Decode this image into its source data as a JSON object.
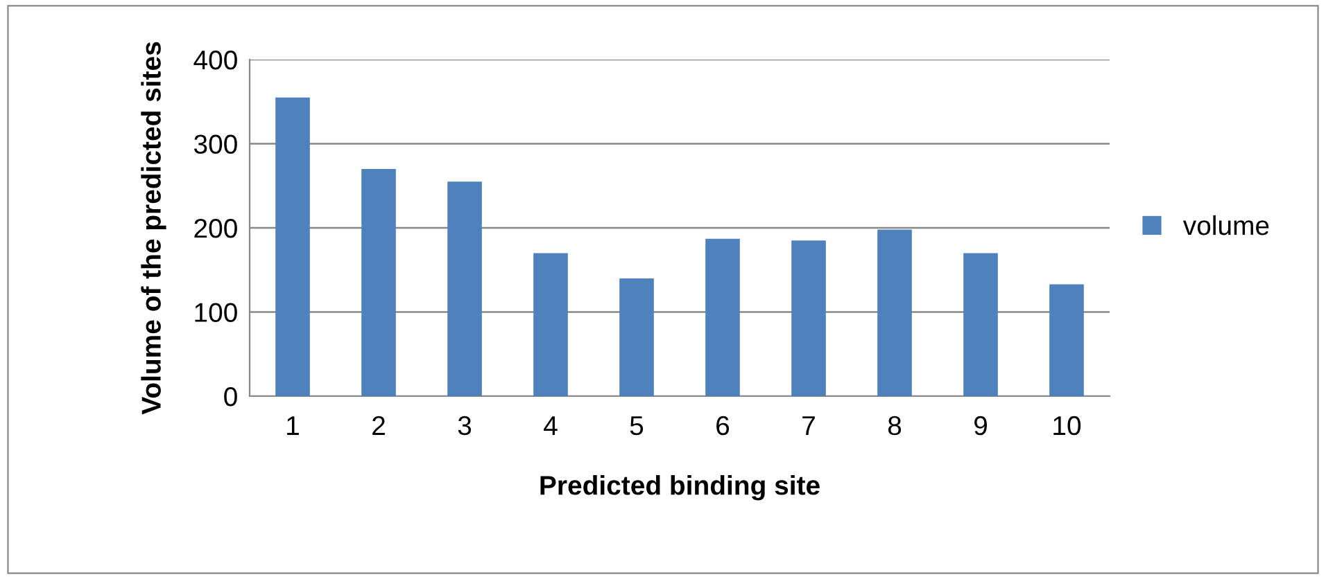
{
  "chart_data": {
    "type": "bar",
    "xlabel": "Predicted binding site",
    "ylabel": "Volume of the predicted sites",
    "categories": [
      "1",
      "2",
      "3",
      "4",
      "5",
      "6",
      "7",
      "8",
      "9",
      "10"
    ],
    "series": [
      {
        "name": "volume",
        "color": "#4f81bd",
        "values": [
          355,
          270,
          255,
          170,
          140,
          187,
          185,
          198,
          170,
          133
        ]
      }
    ],
    "ylim": [
      0,
      400
    ],
    "yticks": [
      0,
      100,
      200,
      300,
      400
    ],
    "grid": "y",
    "legend": "right"
  }
}
